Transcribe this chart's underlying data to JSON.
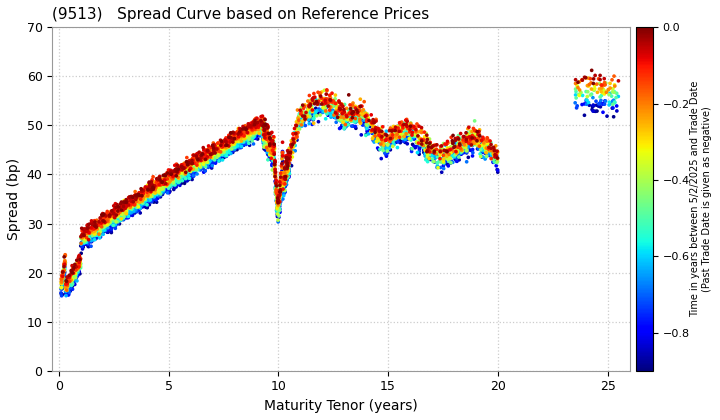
{
  "title": "(9513)   Spread Curve based on Reference Prices",
  "xlabel": "Maturity Tenor (years)",
  "ylabel": "Spread (bp)",
  "colorbar_label_line1": "Time in years between 5/2/2025 and Trade Date",
  "colorbar_label_line2": "(Past Trade Date is given as negative)",
  "xlim": [
    -0.3,
    26
  ],
  "ylim": [
    0,
    70
  ],
  "xticks": [
    0,
    5,
    10,
    15,
    20,
    25
  ],
  "yticks": [
    0,
    10,
    20,
    30,
    40,
    50,
    60,
    70
  ],
  "cmap": "jet",
  "vmin": -0.9,
  "vmax": 0.0,
  "colorbar_ticks": [
    0.0,
    -0.2,
    -0.4,
    -0.6,
    -0.8
  ],
  "background_color": "#ffffff",
  "grid_color": "#cccccc",
  "marker_size": 7,
  "seed": 42
}
